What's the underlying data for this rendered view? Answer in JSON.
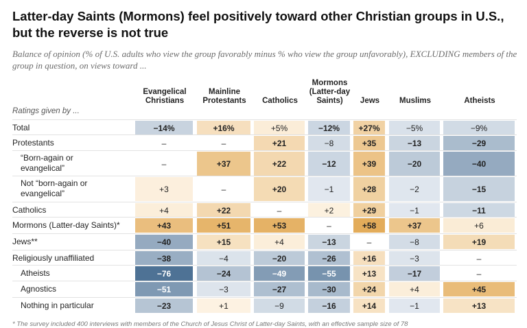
{
  "title": "Latter-day Saints (Mormons) feel positively toward other Christian groups in U.S., but the reverse is not true",
  "subtitle": "Balance of opinion (% of U.S. adults who view the group favorably minus % who view the group unfavorably), EXCLUDING members of the group in question, on views toward ...",
  "ratings_label": "Ratings given by ...",
  "footnote": "* The survey included 400 interviews with members of the Church of Jesus Christ of Latter-day Saints, with an effective sample size of 78",
  "colors": {
    "positive": "#e3ac5a",
    "negative": "#4e7295"
  },
  "chart_data": {
    "type": "table",
    "columns": [
      "Evangelical Christians",
      "Mainline Protestants",
      "Catholics",
      "Mormons (Latter-day Saints)",
      "Jews",
      "Muslims",
      "Atheists"
    ],
    "rows": [
      {
        "label": "Total",
        "values": [
          "−14%",
          "+16%",
          "+5%",
          "−12%",
          "+27%",
          "−5%",
          "−9%"
        ]
      },
      {
        "label": "Protestants",
        "values": [
          "–",
          "–",
          "+21",
          "−8",
          "+35",
          "−13",
          "−29"
        ]
      },
      {
        "label": "“Born-again or evangelical”",
        "values": [
          "–",
          "+37",
          "+22",
          "−12",
          "+39",
          "−20",
          "−40"
        ]
      },
      {
        "label": "Not “born-again or evangelical”",
        "values": [
          "+3",
          "–",
          "+20",
          "−1",
          "+28",
          "−2",
          "−15"
        ]
      },
      {
        "label": "Catholics",
        "values": [
          "+4",
          "+22",
          "–",
          "+2",
          "+29",
          "−1",
          "−11"
        ]
      },
      {
        "label": "Mormons (Latter-day Saints)*",
        "values": [
          "+43",
          "+51",
          "+53",
          "–",
          "+58",
          "+37",
          "+6"
        ]
      },
      {
        "label": "Jews**",
        "values": [
          "−40",
          "+15",
          "+4",
          "−13",
          "–",
          "−8",
          "+19"
        ]
      },
      {
        "label": "Religiously unaffiliated",
        "values": [
          "−38",
          "−4",
          "−20",
          "−26",
          "+16",
          "−3",
          "–"
        ]
      },
      {
        "label": "Atheists",
        "values": [
          "−76",
          "−24",
          "−49",
          "−55",
          "+13",
          "−17",
          "–"
        ]
      },
      {
        "label": "Agnostics",
        "values": [
          "−51",
          "−3",
          "−27",
          "−30",
          "+24",
          "+4",
          "+45"
        ]
      },
      {
        "label": "Nothing in particular",
        "values": [
          "−23",
          "+1",
          "−9",
          "−16",
          "+14",
          "−1",
          "+13"
        ]
      }
    ]
  }
}
